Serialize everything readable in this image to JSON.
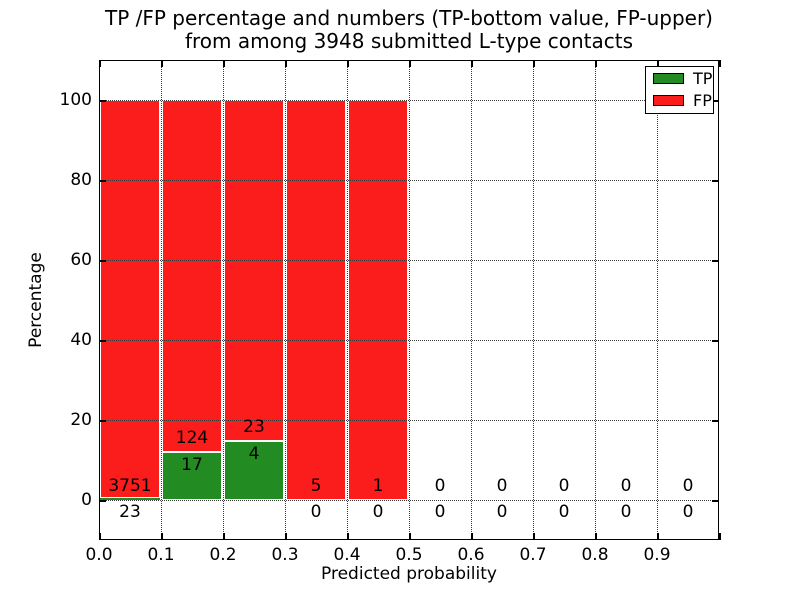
{
  "figure": {
    "title_line1": "TP /FP percentage and numbers (TP-bottom value, FP-upper)",
    "title_line2": "from among 3948 submitted L-type contacts",
    "xlabel": "Predicted probability",
    "ylabel": "Percentage"
  },
  "legend": {
    "position": "upper right",
    "entries": [
      {
        "label": "TP",
        "color": "#228b22"
      },
      {
        "label": "FP",
        "color": "#fb1c1c"
      }
    ]
  },
  "colors": {
    "tp_green": "#228b22",
    "fp_red": "#fb1c1c",
    "frame": "#000000",
    "grid": "#3a3a3a",
    "background": "#ffffff",
    "text": "#000000"
  },
  "chart_data": {
    "type": "bar",
    "stacked": true,
    "unit": "percent",
    "title": "TP /FP percentage and numbers (TP-bottom value, FP-upper) from among 3948 submitted L-type contacts",
    "xlabel": "Predicted probability",
    "ylabel": "Percentage",
    "total_submitted": 3948,
    "bin_width": 0.1,
    "categories": [
      "0.0-0.1",
      "0.1-0.2",
      "0.2-0.3",
      "0.3-0.4",
      "0.4-0.5",
      "0.5-0.6",
      "0.6-0.7",
      "0.7-0.8",
      "0.8-0.9",
      "0.9-1.0"
    ],
    "x_tick_labels": [
      "0.0",
      "0.1",
      "0.2",
      "0.3",
      "0.4",
      "0.5",
      "0.6",
      "0.7",
      "0.8",
      "0.9"
    ],
    "y_ticks": [
      0,
      20,
      40,
      60,
      80,
      100
    ],
    "y_tick_labels": [
      "0",
      "20",
      "40",
      "60",
      "80",
      "100"
    ],
    "xlim": [
      0,
      1
    ],
    "ylim": [
      -10,
      110
    ],
    "grid": "dotted",
    "legend_position": "upper right",
    "series": [
      {
        "name": "TP",
        "color": "#228b22",
        "counts": [
          23,
          17,
          4,
          0,
          0,
          0,
          0,
          0,
          0,
          0
        ],
        "percent": [
          0.61,
          12.06,
          14.81,
          0,
          0,
          0,
          0,
          0,
          0,
          0
        ]
      },
      {
        "name": "FP",
        "color": "#fb1c1c",
        "counts": [
          3751,
          124,
          23,
          5,
          1,
          0,
          0,
          0,
          0,
          0
        ],
        "percent": [
          99.39,
          87.94,
          85.19,
          100,
          100,
          0,
          0,
          0,
          0,
          0
        ]
      }
    ]
  }
}
